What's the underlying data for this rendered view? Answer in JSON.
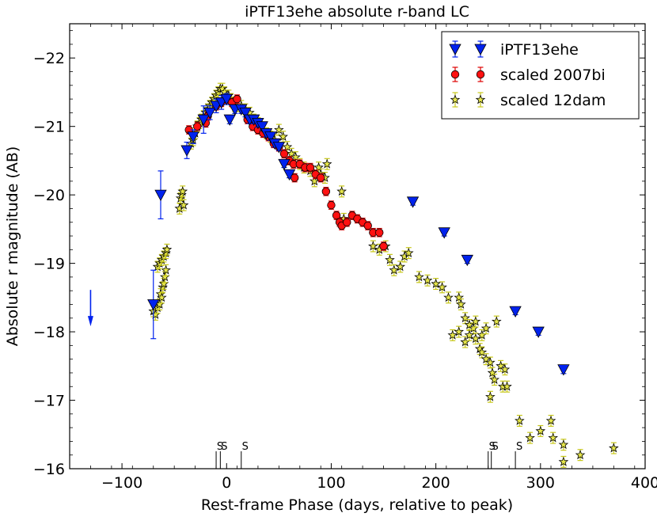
{
  "chart_data": {
    "type": "scatter",
    "title": "iPTF13ehe absolute r-band LC",
    "xlabel": "Rest-frame Phase (days, relative to peak)",
    "ylabel": "Absolute r magnitude (AB)",
    "xlim": [
      -150,
      400
    ],
    "ylim": [
      -22.5,
      -16
    ],
    "x_ticks": [
      -100,
      0,
      100,
      200,
      300,
      400
    ],
    "x_tick_labels": [
      "−100",
      "0",
      "100",
      "200",
      "300",
      "400"
    ],
    "y_ticks": [
      -22,
      -21,
      -20,
      -19,
      -18,
      -17,
      -16
    ],
    "y_tick_labels": [
      "−22",
      "−21",
      "−20",
      "−19",
      "−18",
      "−17",
      "−16"
    ],
    "legend_position": "top-right",
    "series": [
      {
        "name": "scaled 12dam",
        "marker": "star",
        "color": "#e5e54a",
        "edge": "#000000",
        "err_color": "#c8c81a",
        "err": 0.08,
        "points": [
          [
            -70,
            -18.3
          ],
          [
            -68,
            -18.25
          ],
          [
            -66,
            -18.35
          ],
          [
            -64,
            -18.4
          ],
          [
            -63,
            -18.55
          ],
          [
            -62,
            -18.5
          ],
          [
            -61,
            -18.65
          ],
          [
            -60,
            -18.7
          ],
          [
            -59,
            -18.8
          ],
          [
            -58,
            -18.9
          ],
          [
            -66,
            -18.95
          ],
          [
            -64,
            -19.0
          ],
          [
            -62,
            -19.05
          ],
          [
            -60,
            -19.1
          ],
          [
            -58,
            -19.15
          ],
          [
            -57,
            -19.2
          ],
          [
            -45,
            -19.8
          ],
          [
            -44,
            -19.95
          ],
          [
            -43,
            -20.0
          ],
          [
            -42,
            -20.05
          ],
          [
            -41,
            -19.85
          ],
          [
            -34,
            -20.75
          ],
          [
            -32,
            -20.8
          ],
          [
            -30,
            -20.9
          ],
          [
            -28,
            -21.0
          ],
          [
            -26,
            -21.05
          ],
          [
            -24,
            -21.1
          ],
          [
            -22,
            -21.15
          ],
          [
            -20,
            -21.2
          ],
          [
            -18,
            -21.25
          ],
          [
            -16,
            -21.3
          ],
          [
            -14,
            -21.35
          ],
          [
            -12,
            -21.4
          ],
          [
            -10,
            -21.45
          ],
          [
            -8,
            -21.5
          ],
          [
            -6,
            -21.55
          ],
          [
            -4,
            -21.55
          ],
          [
            -2,
            -21.5
          ],
          [
            0,
            -21.45
          ],
          [
            2,
            -21.45
          ],
          [
            4,
            -21.4
          ],
          [
            6,
            -21.35
          ],
          [
            8,
            -21.3
          ],
          [
            10,
            -21.3
          ],
          [
            14,
            -21.3
          ],
          [
            18,
            -21.25
          ],
          [
            22,
            -21.2
          ],
          [
            26,
            -21.1
          ],
          [
            30,
            -21.05
          ],
          [
            34,
            -20.95
          ],
          [
            38,
            -20.9
          ],
          [
            42,
            -20.85
          ],
          [
            46,
            -20.8
          ],
          [
            50,
            -20.95
          ],
          [
            54,
            -20.85
          ],
          [
            58,
            -20.7
          ],
          [
            62,
            -20.6
          ],
          [
            66,
            -20.55
          ],
          [
            70,
            -20.45
          ],
          [
            74,
            -20.4
          ],
          [
            80,
            -20.35
          ],
          [
            84,
            -20.2
          ],
          [
            88,
            -20.4
          ],
          [
            90,
            -20.3
          ],
          [
            94,
            -20.25
          ],
          [
            96,
            -20.45
          ],
          [
            110,
            -20.05
          ],
          [
            112,
            -19.65
          ],
          [
            140,
            -19.25
          ],
          [
            146,
            -19.2
          ],
          [
            152,
            -19.25
          ],
          [
            156,
            -19.05
          ],
          [
            160,
            -18.9
          ],
          [
            166,
            -18.95
          ],
          [
            170,
            -19.1
          ],
          [
            174,
            -19.15
          ],
          [
            184,
            -18.8
          ],
          [
            192,
            -18.75
          ],
          [
            200,
            -18.7
          ],
          [
            206,
            -18.65
          ],
          [
            212,
            -18.5
          ],
          [
            216,
            -17.95
          ],
          [
            222,
            -18.5
          ],
          [
            224,
            -18.4
          ],
          [
            228,
            -18.2
          ],
          [
            232,
            -18.1
          ],
          [
            236,
            -18.05
          ],
          [
            238,
            -17.9
          ],
          [
            242,
            -17.75
          ],
          [
            244,
            -17.7
          ],
          [
            248,
            -17.6
          ],
          [
            252,
            -17.55
          ],
          [
            254,
            -17.4
          ],
          [
            256,
            -17.3
          ],
          [
            262,
            -17.5
          ],
          [
            266,
            -17.45
          ],
          [
            222,
            -18.0
          ],
          [
            228,
            -17.85
          ],
          [
            232,
            -17.95
          ],
          [
            238,
            -18.15
          ],
          [
            244,
            -17.95
          ],
          [
            248,
            -18.05
          ],
          [
            258,
            -18.15
          ],
          [
            252,
            -17.05
          ],
          [
            264,
            -17.2
          ],
          [
            268,
            -17.2
          ],
          [
            280,
            -16.7
          ],
          [
            290,
            -16.45
          ],
          [
            300,
            -16.55
          ],
          [
            310,
            -16.7
          ],
          [
            312,
            -16.45
          ],
          [
            322,
            -16.35
          ],
          [
            338,
            -16.2
          ],
          [
            370,
            -16.3
          ],
          [
            322,
            -16.1
          ]
        ]
      },
      {
        "name": "scaled 2007bi",
        "marker": "circle",
        "color": "#ff1111",
        "edge": "#000000",
        "err_color": "#dd0000",
        "err": 0.06,
        "points": [
          [
            -36,
            -20.95
          ],
          [
            -28,
            -21.0
          ],
          [
            -20,
            -21.05
          ],
          [
            -18,
            -21.15
          ],
          [
            -10,
            -21.3
          ],
          [
            -5,
            -21.35
          ],
          [
            0,
            -21.4
          ],
          [
            5,
            -21.35
          ],
          [
            10,
            -21.4
          ],
          [
            20,
            -21.1
          ],
          [
            25,
            -21.0
          ],
          [
            30,
            -20.95
          ],
          [
            35,
            -20.9
          ],
          [
            40,
            -20.85
          ],
          [
            45,
            -20.75
          ],
          [
            50,
            -20.7
          ],
          [
            55,
            -20.6
          ],
          [
            60,
            -20.5
          ],
          [
            64,
            -20.45
          ],
          [
            65,
            -20.25
          ],
          [
            70,
            -20.45
          ],
          [
            75,
            -20.4
          ],
          [
            80,
            -20.4
          ],
          [
            85,
            -20.3
          ],
          [
            90,
            -20.25
          ],
          [
            95,
            -20.05
          ],
          [
            100,
            -19.85
          ],
          [
            105,
            -19.7
          ],
          [
            108,
            -19.6
          ],
          [
            110,
            -19.55
          ],
          [
            115,
            -19.6
          ],
          [
            120,
            -19.7
          ],
          [
            125,
            -19.65
          ],
          [
            130,
            -19.6
          ],
          [
            135,
            -19.55
          ],
          [
            140,
            -19.45
          ],
          [
            146,
            -19.45
          ],
          [
            150,
            -19.25
          ]
        ]
      },
      {
        "name": "iPTF13ehe",
        "marker": "triangle_down",
        "color": "#0022ee",
        "edge": "#000000",
        "err_color": "#0022ee",
        "points": [
          [
            -70,
            -18.4,
            0.5
          ],
          [
            -63,
            -20.0,
            0.35
          ],
          [
            -38,
            -20.65,
            0.12
          ],
          [
            -32,
            -20.85,
            0.1
          ],
          [
            -22,
            -21.1,
            0.2
          ],
          [
            -16,
            -21.2,
            0.1
          ],
          [
            -10,
            -21.3,
            0.1
          ],
          [
            -5,
            -21.35,
            0.1
          ],
          [
            0,
            -21.4,
            0.08
          ],
          [
            3,
            -21.1,
            0.06
          ],
          [
            8,
            -21.25,
            0.06
          ],
          [
            14,
            -21.25,
            0.06
          ],
          [
            18,
            -21.2,
            0.06
          ],
          [
            22,
            -21.1,
            0.06
          ],
          [
            26,
            -21.1,
            0.06
          ],
          [
            30,
            -21.05,
            0.06
          ],
          [
            34,
            -21.0,
            0.05
          ],
          [
            38,
            -20.9,
            0.05
          ],
          [
            42,
            -20.85,
            0.05
          ],
          [
            46,
            -20.75,
            0.05
          ],
          [
            50,
            -20.7,
            0.05
          ],
          [
            55,
            -20.45,
            0.05
          ],
          [
            60,
            -20.3,
            0.05
          ],
          [
            178,
            -19.9,
            0.05
          ],
          [
            208,
            -19.45,
            0.05
          ],
          [
            230,
            -19.05,
            0.05
          ],
          [
            276,
            -18.3,
            0.05
          ],
          [
            298,
            -18.0,
            0.05
          ],
          [
            322,
            -17.45,
            0.06
          ]
        ]
      },
      {
        "name": "upper limit",
        "marker": "arrow_down",
        "color": "#0022ee",
        "points": [
          [
            -130,
            -18.3
          ]
        ]
      }
    ],
    "spectra_markers": {
      "label": "S",
      "phases": [
        -10,
        -6,
        14,
        250,
        253,
        276
      ]
    }
  }
}
